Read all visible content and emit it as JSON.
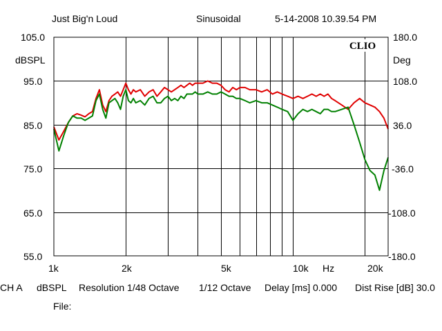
{
  "header": {
    "name": "Just Big'n Loud",
    "mode": "Sinusoidal",
    "datetime": "5-14-2008 10.39.54 PM"
  },
  "brand": "CLIO",
  "left_axis": {
    "unit": "dBSPL",
    "ticks": [
      "105.0",
      "95.0",
      "85.0",
      "75.0",
      "65.0",
      "55.0"
    ]
  },
  "right_axis": {
    "unit": "Deg",
    "ticks": [
      "180.0",
      "108.0",
      "36.0",
      "-36.0",
      "-108.0",
      "-180.0"
    ]
  },
  "x_axis": {
    "ticks": [
      "1k",
      "2k",
      "5k",
      "10k",
      "20k"
    ],
    "unit": "Hz"
  },
  "footer": {
    "channel": "CH A",
    "unit": "dBSPL",
    "resolution": "Resolution 1/48 Octave",
    "smoothing": "1/12 Octave",
    "delay": "Delay [ms] 0.000",
    "dist_rise": "Dist Rise [dB] 30.0",
    "file_label": "File:"
  },
  "colors": {
    "red_series": "#e00000",
    "green_series": "#008000",
    "grid": "#000000"
  },
  "chart_data": {
    "type": "line",
    "x_scale": "log",
    "xlim": [
      1000,
      25000
    ],
    "ylim": [
      55,
      105
    ],
    "y2lim": [
      -180,
      180
    ],
    "grid": true,
    "series": [
      {
        "color": "#e00000",
        "x": [
          1000,
          1050,
          1100,
          1150,
          1200,
          1250,
          1300,
          1350,
          1400,
          1450,
          1500,
          1550,
          1600,
          1650,
          1700,
          1750,
          1800,
          1850,
          1900,
          1950,
          2000,
          2050,
          2100,
          2150,
          2200,
          2300,
          2400,
          2500,
          2600,
          2700,
          2800,
          2900,
          3000,
          3100,
          3200,
          3300,
          3400,
          3500,
          3600,
          3700,
          3800,
          3900,
          4000,
          4200,
          4400,
          4600,
          4800,
          5000,
          5200,
          5400,
          5600,
          5800,
          6000,
          6300,
          6600,
          7000,
          7400,
          7800,
          8200,
          8600,
          9000,
          9500,
          10000,
          10500,
          11000,
          11500,
          12000,
          12500,
          13000,
          13500,
          14000,
          14500,
          15000,
          16000,
          17000,
          18000,
          19000,
          20000,
          21000,
          22000,
          23000,
          24000,
          25000
        ],
        "y": [
          84.5,
          81.5,
          83.5,
          85.5,
          87.0,
          87.5,
          87.2,
          86.8,
          87.5,
          88.0,
          91.0,
          93.0,
          89.5,
          88.0,
          90.5,
          91.5,
          92.0,
          92.5,
          91.5,
          93.0,
          94.5,
          93.0,
          92.0,
          93.0,
          92.5,
          93.0,
          91.5,
          92.5,
          93.0,
          91.5,
          92.5,
          93.5,
          93.0,
          92.5,
          93.0,
          93.5,
          94.0,
          93.5,
          94.0,
          94.5,
          94.0,
          94.5,
          94.5,
          94.5,
          95.0,
          94.5,
          94.5,
          94.0,
          93.0,
          92.5,
          93.5,
          93.0,
          93.5,
          93.5,
          93.0,
          93.0,
          92.5,
          93.0,
          92.0,
          92.5,
          92.0,
          91.5,
          91.0,
          91.5,
          91.0,
          91.5,
          92.0,
          91.5,
          92.0,
          91.5,
          92.0,
          91.0,
          90.5,
          89.5,
          88.5,
          90.0,
          91.0,
          90.0,
          89.5,
          89.0,
          88.0,
          86.5,
          84.0
        ]
      },
      {
        "color": "#008000",
        "x": [
          1000,
          1050,
          1100,
          1150,
          1200,
          1250,
          1300,
          1350,
          1400,
          1450,
          1500,
          1550,
          1600,
          1650,
          1700,
          1750,
          1800,
          1850,
          1900,
          1950,
          2000,
          2050,
          2100,
          2150,
          2200,
          2300,
          2400,
          2500,
          2600,
          2700,
          2800,
          2900,
          3000,
          3100,
          3200,
          3300,
          3400,
          3500,
          3600,
          3700,
          3800,
          3900,
          4000,
          4200,
          4400,
          4600,
          4800,
          5000,
          5200,
          5400,
          5600,
          5800,
          6000,
          6300,
          6600,
          7000,
          7400,
          7800,
          8200,
          8600,
          9000,
          9500,
          10000,
          10500,
          11000,
          11500,
          12000,
          12500,
          13000,
          13500,
          14000,
          14500,
          15000,
          16000,
          17000,
          18000,
          19000,
          20000,
          21000,
          22000,
          23000,
          24000,
          25000
        ],
        "y": [
          84.0,
          79.0,
          82.5,
          85.5,
          87.0,
          86.5,
          86.5,
          86.0,
          86.5,
          87.0,
          90.5,
          92.0,
          88.5,
          86.5,
          90.0,
          90.5,
          91.0,
          90.0,
          88.5,
          91.5,
          93.0,
          90.5,
          90.0,
          91.0,
          90.0,
          90.5,
          89.5,
          91.0,
          91.5,
          90.0,
          90.0,
          91.0,
          91.5,
          90.5,
          91.0,
          90.5,
          91.5,
          91.0,
          92.0,
          92.0,
          92.0,
          92.5,
          92.0,
          92.0,
          92.5,
          92.0,
          92.0,
          92.5,
          92.0,
          91.5,
          91.5,
          91.0,
          91.0,
          90.5,
          90.0,
          90.5,
          90.0,
          90.0,
          89.5,
          89.0,
          88.5,
          88.0,
          86.0,
          87.5,
          88.5,
          88.0,
          88.5,
          88.0,
          87.5,
          88.5,
          88.5,
          88.0,
          88.0,
          88.5,
          89.0,
          85.0,
          81.0,
          77.0,
          74.5,
          73.5,
          70.0,
          74.5,
          77.5
        ]
      }
    ]
  }
}
